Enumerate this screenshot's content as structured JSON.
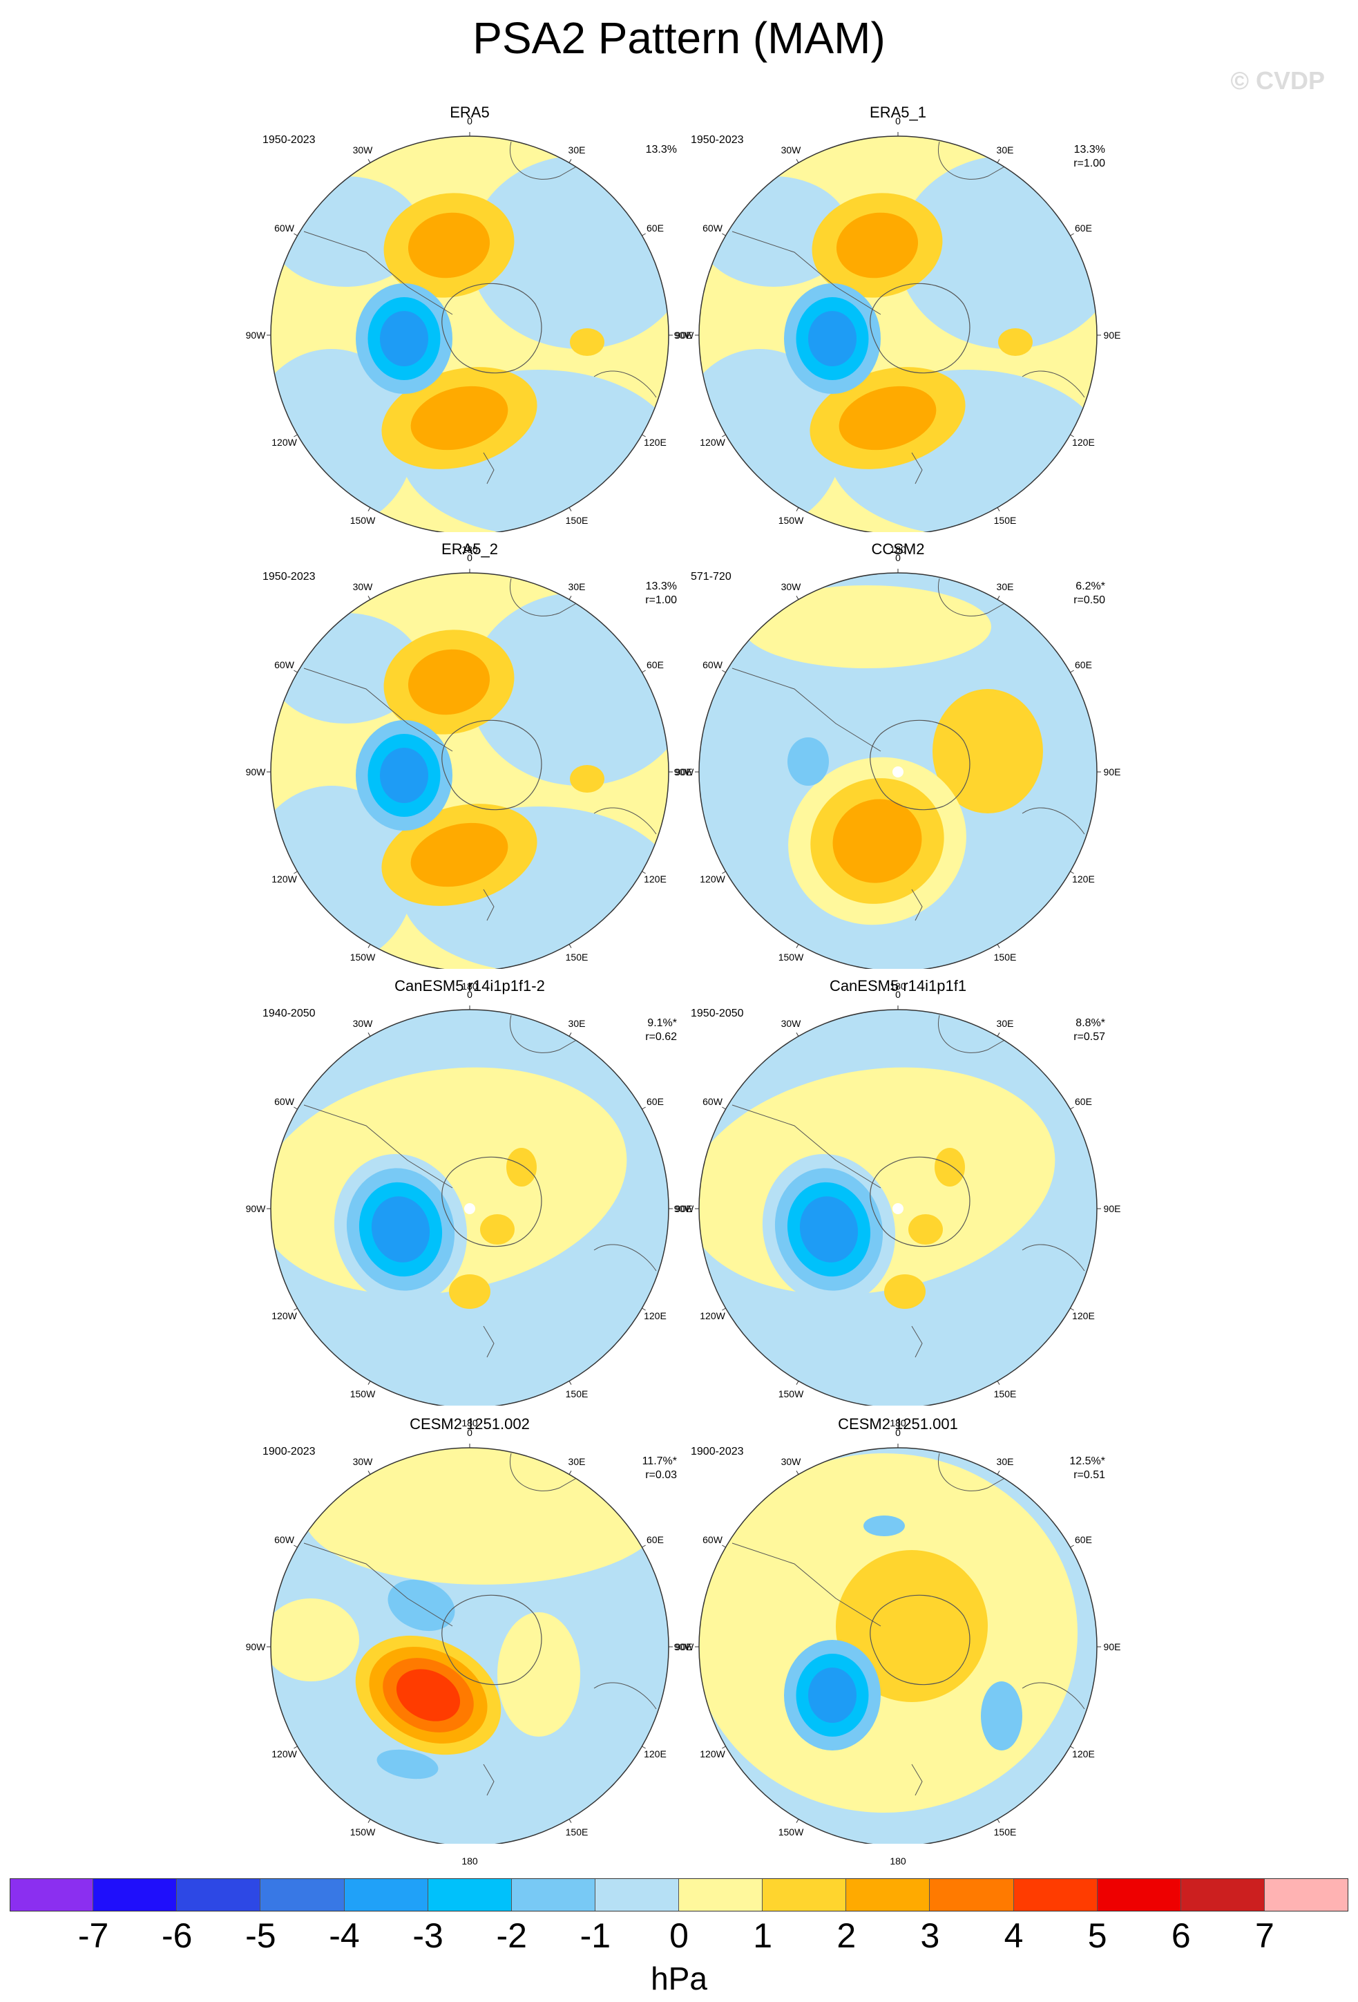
{
  "figure": {
    "title": "PSA2 Pattern (MAM)",
    "watermark": "© CVDP",
    "unit": "hPa"
  },
  "lon_labels": [
    "0",
    "30E",
    "60E",
    "90E",
    "120E",
    "150E",
    "180",
    "150W",
    "120W",
    "90W",
    "60W",
    "30W"
  ],
  "panels": [
    {
      "title": "ERA5",
      "period": "1950-2023",
      "pct": "13.3%",
      "corr": ""
    },
    {
      "title": "ERA5_1",
      "period": "1950-2023",
      "pct": "13.3%",
      "corr": "r=1.00"
    },
    {
      "title": "ERA5_2",
      "period": "1950-2023",
      "pct": "13.3%",
      "corr": "r=1.00"
    },
    {
      "title": "CCSM2",
      "period": "571-720",
      "pct": "6.2%*",
      "corr": "r=0.50"
    },
    {
      "title": "CanESM5 r14i1p1f1-2",
      "period": "1940-2050",
      "pct": "9.1%*",
      "corr": "r=0.62"
    },
    {
      "title": "CanESM5 r14i1p1f1",
      "period": "1950-2050",
      "pct": "8.8%*",
      "corr": "r=0.57"
    },
    {
      "title": "CESM2 1251.002",
      "period": "1900-2023",
      "pct": "11.7%*",
      "corr": "r=0.03"
    },
    {
      "title": "CESM2 1251.001",
      "period": "1900-2023",
      "pct": "12.5%*",
      "corr": "r=0.51"
    }
  ],
  "colorbar": {
    "ticks": [
      "-7",
      "-6",
      "-5",
      "-4",
      "-3",
      "-2",
      "-1",
      "0",
      "1",
      "2",
      "3",
      "4",
      "5",
      "6",
      "7"
    ],
    "colors": [
      "#8b2ff0",
      "#1f0ffb",
      "#2d48e5",
      "#3878e5",
      "#20a1f8",
      "#00c1fb",
      "#78c9f5",
      "#b6e0f5",
      "#fff89c",
      "#ffd52e",
      "#ffaa00",
      "#ff7a00",
      "#ff3c00",
      "#ee0000",
      "#cc1f1f",
      "#ffb3b3"
    ]
  },
  "anomaly_colors": {
    "neg3": "#1e9cf5",
    "neg2": "#00c1fb",
    "neg1": "#78c9f5",
    "zero_neg": "#b6e0f5",
    "zero_pos": "#fff89c",
    "pos1": "#ffd52e",
    "pos2": "#ffaa00",
    "pos3": "#ff7a00",
    "pos4": "#ff3c00"
  }
}
